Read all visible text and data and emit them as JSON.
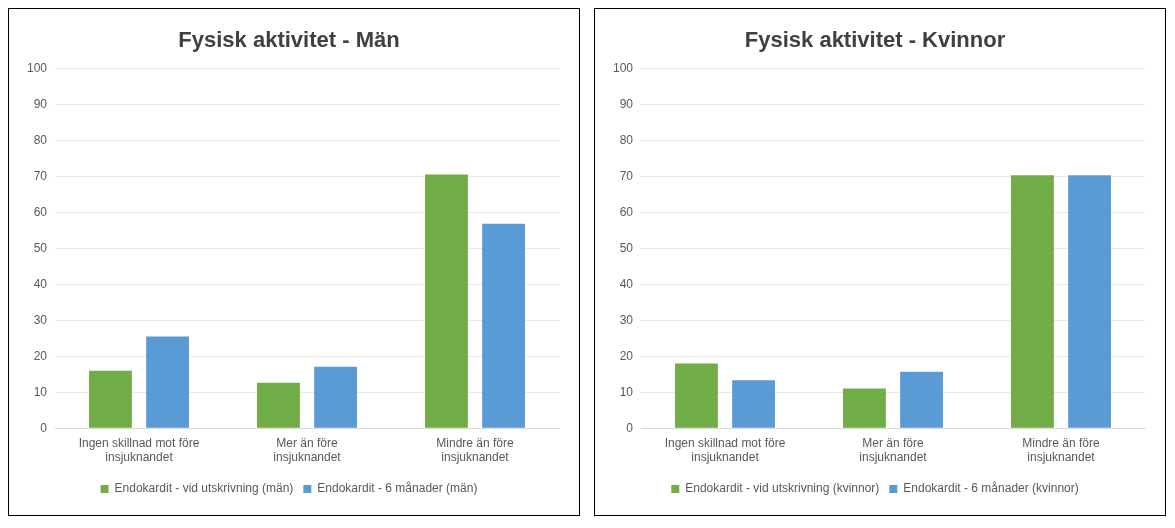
{
  "chart_data": [
    {
      "type": "bar",
      "title": "Fysisk aktivitet - Män",
      "categories": [
        "Ingen skillnad mot före insjuknandet",
        "Mer än före insjuknandet",
        "Mindre än före insjuknandet"
      ],
      "series": [
        {
          "name": "Endokardit - vid utskrivning (män)",
          "color": "#70ad47",
          "values": [
            16,
            12.6,
            70.5
          ]
        },
        {
          "name": "Endokardit - 6 månader (män)",
          "color": "#5b9bd5",
          "values": [
            25.5,
            17.1,
            56.8
          ]
        }
      ],
      "ylim": [
        0,
        100
      ],
      "yticks": [
        0,
        10,
        20,
        30,
        40,
        50,
        60,
        70,
        80,
        90,
        100
      ],
      "grid": "y",
      "legend": "bottom"
    },
    {
      "type": "bar",
      "title": "Fysisk aktivitet - Kvinnor",
      "categories": [
        "Ingen skillnad mot före insjuknandet",
        "Mer än före insjuknandet",
        "Mindre än före insjuknandet"
      ],
      "series": [
        {
          "name": "Endokardit - vid utskrivning (kvinnor)",
          "color": "#70ad47",
          "values": [
            18,
            11,
            70.3
          ]
        },
        {
          "name": "Endokardit - 6 månader (kvinnor)",
          "color": "#5b9bd5",
          "values": [
            13.3,
            15.7,
            70.3
          ]
        }
      ],
      "ylim": [
        0,
        100
      ],
      "yticks": [
        0,
        10,
        20,
        30,
        40,
        50,
        60,
        70,
        80,
        90,
        100
      ],
      "grid": "y",
      "legend": "bottom"
    }
  ]
}
